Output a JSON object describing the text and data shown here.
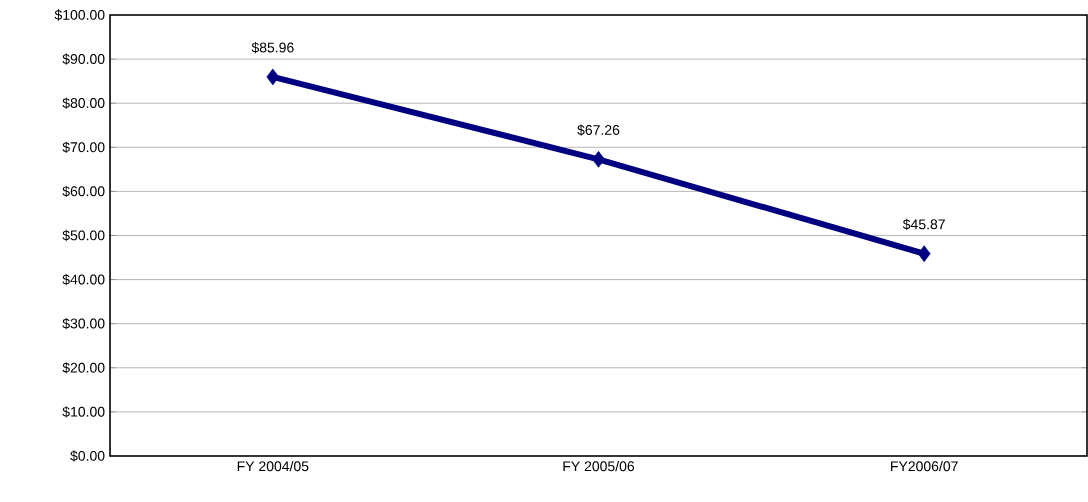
{
  "chart_data": {
    "type": "line",
    "categories": [
      "FY 2004/05",
      "FY 2005/06",
      "FY2006/07"
    ],
    "series": [
      {
        "color": "#000080",
        "values": [
          85.96,
          67.26,
          45.87
        ],
        "value_labels": [
          "$85.96",
          "$67.26",
          "$45.87"
        ]
      }
    ],
    "ylim": [
      0,
      100
    ],
    "yticks": [
      {
        "value": 0,
        "label": "$0.00"
      },
      {
        "value": 10,
        "label": "$10.00"
      },
      {
        "value": 20,
        "label": "$20.00"
      },
      {
        "value": 30,
        "label": "$30.00"
      },
      {
        "value": 40,
        "label": "$40.00"
      },
      {
        "value": 50,
        "label": "$50.00"
      },
      {
        "value": 60,
        "label": "$60.00"
      },
      {
        "value": 70,
        "label": "$70.00"
      },
      {
        "value": 80,
        "label": "$80.00"
      },
      {
        "value": 90,
        "label": "$90.00"
      },
      {
        "value": 100,
        "label": "$100.00"
      }
    ],
    "grid": "y",
    "marker": "diamond",
    "line_style": "solid"
  }
}
